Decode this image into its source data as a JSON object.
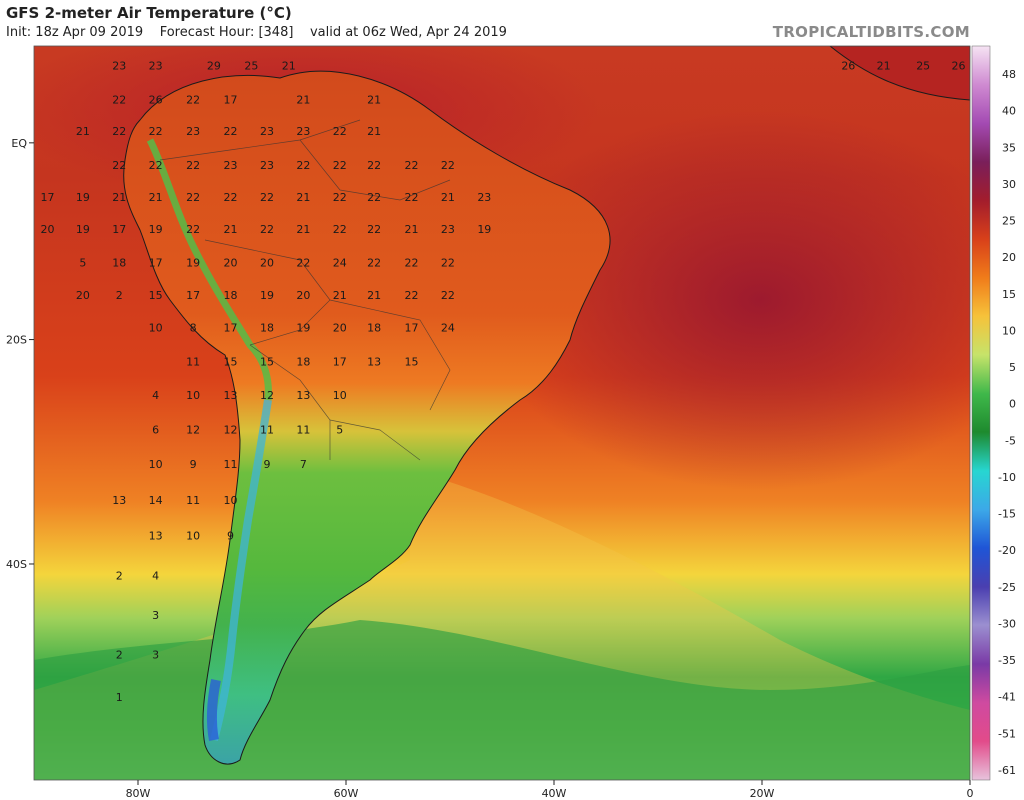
{
  "header": {
    "title": "GFS 2-meter Air Temperature (°C)",
    "init": "Init: 18z Apr 09 2019",
    "forecast_hour": "Forecast Hour: [348]",
    "valid": "valid at 06z Wed, Apr 24 2019",
    "brand": "TROPICALTIDBITS.COM"
  },
  "lat_labels": [
    {
      "text": "EQ",
      "lat": 0
    },
    {
      "text": "20S",
      "lat": -20
    },
    {
      "text": "40S",
      "lat": -40
    }
  ],
  "lon_labels": [
    {
      "text": "80W",
      "lon": -80
    },
    {
      "text": "60W",
      "lon": -60
    },
    {
      "text": "40W",
      "lon": -40
    },
    {
      "text": "20W",
      "lon": -20
    },
    {
      "text": "0",
      "lon": 0
    }
  ],
  "colorbar": {
    "ticks": [
      "48",
      "40",
      "35",
      "30",
      "25",
      "20",
      "15",
      "10",
      "5",
      "0",
      "-5",
      "-10",
      "-15",
      "-20",
      "-25",
      "-30",
      "-35",
      "-41",
      "-51",
      "-61"
    ],
    "stops": [
      "#f6e3f3",
      "#cf8ad1",
      "#a44bb3",
      "#7a1f5a",
      "#a31d2c",
      "#d8401a",
      "#f07c1a",
      "#f6c23a",
      "#c6e36a",
      "#3fb84a",
      "#1e8a2e",
      "#27d6d1",
      "#3ca8e8",
      "#1f55d6",
      "#4a3fb0",
      "#9b8fd0",
      "#7a3aa6",
      "#cf4aa0",
      "#e24b8a",
      "#e7c3dc"
    ]
  },
  "temperature_labels": [
    {
      "text": "23",
      "lon": -81.8,
      "lat": 7.9
    },
    {
      "text": "23",
      "lon": -78.3,
      "lat": 7.9
    },
    {
      "text": "29",
      "lon": -72.7,
      "lat": 7.9
    },
    {
      "text": "25",
      "lon": -69.1,
      "lat": 7.9
    },
    {
      "text": "21",
      "lon": -65.5,
      "lat": 7.9
    },
    {
      "text": "22",
      "lon": -81.8,
      "lat": 4.4
    },
    {
      "text": "26",
      "lon": -78.3,
      "lat": 4.4
    },
    {
      "text": "22",
      "lon": -74.7,
      "lat": 4.4
    },
    {
      "text": "17",
      "lon": -71.1,
      "lat": 4.4
    },
    {
      "text": "21",
      "lon": -64.1,
      "lat": 4.4
    },
    {
      "text": "21",
      "lon": -57.3,
      "lat": 4.4
    },
    {
      "text": "21",
      "lon": -85.3,
      "lat": 1.1
    },
    {
      "text": "22",
      "lon": -81.8,
      "lat": 1.1
    },
    {
      "text": "22",
      "lon": -78.3,
      "lat": 1.1
    },
    {
      "text": "23",
      "lon": -74.7,
      "lat": 1.1
    },
    {
      "text": "22",
      "lon": -71.1,
      "lat": 1.1
    },
    {
      "text": "23",
      "lon": -67.6,
      "lat": 1.1
    },
    {
      "text": "23",
      "lon": -64.1,
      "lat": 1.1
    },
    {
      "text": "22",
      "lon": -60.6,
      "lat": 1.1
    },
    {
      "text": "21",
      "lon": -57.3,
      "lat": 1.1
    },
    {
      "text": "22",
      "lon": -81.8,
      "lat": -2.4
    },
    {
      "text": "22",
      "lon": -78.3,
      "lat": -2.4
    },
    {
      "text": "22",
      "lon": -74.7,
      "lat": -2.4
    },
    {
      "text": "23",
      "lon": -71.1,
      "lat": -2.4
    },
    {
      "text": "23",
      "lon": -67.6,
      "lat": -2.4
    },
    {
      "text": "22",
      "lon": -64.1,
      "lat": -2.4
    },
    {
      "text": "22",
      "lon": -60.6,
      "lat": -2.4
    },
    {
      "text": "22",
      "lon": -57.3,
      "lat": -2.4
    },
    {
      "text": "22",
      "lon": -53.7,
      "lat": -2.4
    },
    {
      "text": "22",
      "lon": -50.2,
      "lat": -2.4
    },
    {
      "text": "17",
      "lon": -88.7,
      "lat": -5.7
    },
    {
      "text": "19",
      "lon": -85.3,
      "lat": -5.7
    },
    {
      "text": "21",
      "lon": -81.8,
      "lat": -5.7
    },
    {
      "text": "21",
      "lon": -78.3,
      "lat": -5.7
    },
    {
      "text": "22",
      "lon": -74.7,
      "lat": -5.7
    },
    {
      "text": "22",
      "lon": -71.1,
      "lat": -5.7
    },
    {
      "text": "22",
      "lon": -67.6,
      "lat": -5.7
    },
    {
      "text": "21",
      "lon": -64.1,
      "lat": -5.7
    },
    {
      "text": "22",
      "lon": -60.6,
      "lat": -5.7
    },
    {
      "text": "22",
      "lon": -57.3,
      "lat": -5.7
    },
    {
      "text": "22",
      "lon": -53.7,
      "lat": -5.7
    },
    {
      "text": "21",
      "lon": -50.2,
      "lat": -5.7
    },
    {
      "text": "23",
      "lon": -46.7,
      "lat": -5.7
    },
    {
      "text": "20",
      "lon": -88.7,
      "lat": -9.0
    },
    {
      "text": "19",
      "lon": -85.3,
      "lat": -9.0
    },
    {
      "text": "17",
      "lon": -81.8,
      "lat": -9.0
    },
    {
      "text": "19",
      "lon": -78.3,
      "lat": -9.0
    },
    {
      "text": "22",
      "lon": -74.7,
      "lat": -9.0
    },
    {
      "text": "21",
      "lon": -71.1,
      "lat": -9.0
    },
    {
      "text": "22",
      "lon": -67.6,
      "lat": -9.0
    },
    {
      "text": "21",
      "lon": -64.1,
      "lat": -9.0
    },
    {
      "text": "22",
      "lon": -60.6,
      "lat": -9.0
    },
    {
      "text": "22",
      "lon": -57.3,
      "lat": -9.0
    },
    {
      "text": "21",
      "lon": -53.7,
      "lat": -9.0
    },
    {
      "text": "23",
      "lon": -50.2,
      "lat": -9.0
    },
    {
      "text": "19",
      "lon": -46.7,
      "lat": -9.0
    },
    {
      "text": "5",
      "lon": -85.3,
      "lat": -12.4
    },
    {
      "text": "18",
      "lon": -81.8,
      "lat": -12.4
    },
    {
      "text": "17",
      "lon": -78.3,
      "lat": -12.4
    },
    {
      "text": "19",
      "lon": -74.7,
      "lat": -12.4
    },
    {
      "text": "20",
      "lon": -71.1,
      "lat": -12.4
    },
    {
      "text": "20",
      "lon": -67.6,
      "lat": -12.4
    },
    {
      "text": "22",
      "lon": -64.1,
      "lat": -12.4
    },
    {
      "text": "24",
      "lon": -60.6,
      "lat": -12.4
    },
    {
      "text": "22",
      "lon": -57.3,
      "lat": -12.4
    },
    {
      "text": "22",
      "lon": -53.7,
      "lat": -12.4
    },
    {
      "text": "22",
      "lon": -50.2,
      "lat": -12.4
    },
    {
      "text": "20",
      "lon": -85.3,
      "lat": -15.7
    },
    {
      "text": "2",
      "lon": -81.8,
      "lat": -15.7
    },
    {
      "text": "15",
      "lon": -78.3,
      "lat": -15.7
    },
    {
      "text": "17",
      "lon": -74.7,
      "lat": -15.7
    },
    {
      "text": "18",
      "lon": -71.1,
      "lat": -15.7
    },
    {
      "text": "19",
      "lon": -67.6,
      "lat": -15.7
    },
    {
      "text": "20",
      "lon": -64.1,
      "lat": -15.7
    },
    {
      "text": "21",
      "lon": -60.6,
      "lat": -15.7
    },
    {
      "text": "21",
      "lon": -57.3,
      "lat": -15.7
    },
    {
      "text": "22",
      "lon": -53.7,
      "lat": -15.7
    },
    {
      "text": "22",
      "lon": -50.2,
      "lat": -15.7
    },
    {
      "text": "10",
      "lon": -78.3,
      "lat": -18.9
    },
    {
      "text": "8",
      "lon": -74.7,
      "lat": -18.9
    },
    {
      "text": "17",
      "lon": -71.1,
      "lat": -18.9
    },
    {
      "text": "18",
      "lon": -67.6,
      "lat": -18.9
    },
    {
      "text": "19",
      "lon": -64.1,
      "lat": -18.9
    },
    {
      "text": "20",
      "lon": -60.6,
      "lat": -18.9
    },
    {
      "text": "18",
      "lon": -57.3,
      "lat": -18.9
    },
    {
      "text": "17",
      "lon": -53.7,
      "lat": -18.9
    },
    {
      "text": "24",
      "lon": -50.2,
      "lat": -18.9
    },
    {
      "text": "11",
      "lon": -74.7,
      "lat": -22.2
    },
    {
      "text": "15",
      "lon": -71.1,
      "lat": -22.2
    },
    {
      "text": "15",
      "lon": -67.6,
      "lat": -22.2
    },
    {
      "text": "18",
      "lon": -64.1,
      "lat": -22.2
    },
    {
      "text": "17",
      "lon": -60.6,
      "lat": -22.2
    },
    {
      "text": "13",
      "lon": -57.3,
      "lat": -22.2
    },
    {
      "text": "15",
      "lon": -53.7,
      "lat": -22.2
    },
    {
      "text": "4",
      "lon": -78.3,
      "lat": -25.4
    },
    {
      "text": "10",
      "lon": -74.7,
      "lat": -25.4
    },
    {
      "text": "13",
      "lon": -71.1,
      "lat": -25.4
    },
    {
      "text": "12",
      "lon": -67.6,
      "lat": -25.4
    },
    {
      "text": "13",
      "lon": -64.1,
      "lat": -25.4
    },
    {
      "text": "10",
      "lon": -60.6,
      "lat": -25.4
    },
    {
      "text": "6",
      "lon": -78.3,
      "lat": -28.6
    },
    {
      "text": "12",
      "lon": -74.7,
      "lat": -28.6
    },
    {
      "text": "12",
      "lon": -71.1,
      "lat": -28.6
    },
    {
      "text": "11",
      "lon": -67.6,
      "lat": -28.6
    },
    {
      "text": "11",
      "lon": -64.1,
      "lat": -28.6
    },
    {
      "text": "5",
      "lon": -60.6,
      "lat": -28.6
    },
    {
      "text": "10",
      "lon": -78.3,
      "lat": -31.7
    },
    {
      "text": "9",
      "lon": -74.7,
      "lat": -31.7
    },
    {
      "text": "11",
      "lon": -71.1,
      "lat": -31.7
    },
    {
      "text": "9",
      "lon": -67.6,
      "lat": -31.7
    },
    {
      "text": "7",
      "lon": -64.1,
      "lat": -31.7
    },
    {
      "text": "13",
      "lon": -81.8,
      "lat": -34.8
    },
    {
      "text": "14",
      "lon": -78.3,
      "lat": -34.8
    },
    {
      "text": "11",
      "lon": -74.7,
      "lat": -34.8
    },
    {
      "text": "10",
      "lon": -71.1,
      "lat": -34.8
    },
    {
      "text": "13",
      "lon": -78.3,
      "lat": -37.8
    },
    {
      "text": "10",
      "lon": -74.7,
      "lat": -37.8
    },
    {
      "text": "9",
      "lon": -71.1,
      "lat": -37.8
    },
    {
      "text": "2",
      "lon": -81.8,
      "lat": -41.0
    },
    {
      "text": "4",
      "lon": -78.3,
      "lat": -41.0
    },
    {
      "text": "3",
      "lon": -78.3,
      "lat": -44.0
    },
    {
      "text": "2",
      "lon": -81.8,
      "lat": -46.9
    },
    {
      "text": "3",
      "lon": -78.3,
      "lat": -46.9
    },
    {
      "text": "1",
      "lon": -81.8,
      "lat": -49.8
    },
    {
      "text": "26",
      "lon": -11.7,
      "lat": 7.9
    },
    {
      "text": "21",
      "lon": -8.3,
      "lat": 7.9
    },
    {
      "text": "25",
      "lon": -4.5,
      "lat": 7.9
    },
    {
      "text": "26",
      "lon": -1.1,
      "lat": 7.9
    }
  ]
}
